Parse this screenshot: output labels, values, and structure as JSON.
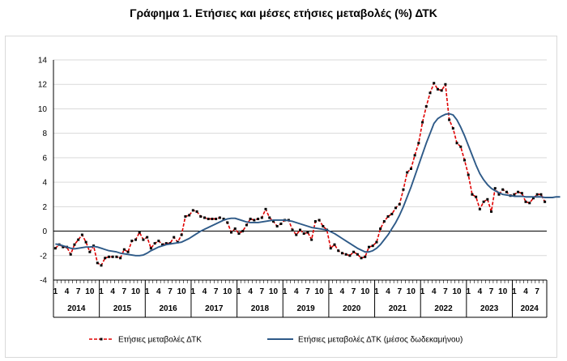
{
  "title": "Γράφημα 1. Ετήσιες και μέσες ετήσιες μεταβολές (%) ΔΤΚ",
  "chart_data": {
    "type": "line",
    "title": "Γράφημα 1. Ετήσιες και μέσες ετήσιες μεταβολές (%) ΔΤΚ",
    "ylim": [
      -4,
      14
    ],
    "yticks": [
      -4,
      -2,
      0,
      2,
      4,
      6,
      8,
      10,
      12,
      14
    ],
    "grid": true,
    "legend_position": "bottom",
    "month_ticks": [
      "1",
      "4",
      "7",
      "10"
    ],
    "years": [
      "2014",
      "2015",
      "2016",
      "2017",
      "2018",
      "2019",
      "2020",
      "2021",
      "2022",
      "2023",
      "2024"
    ],
    "x_start": "2014-01",
    "x_end": "2024-10",
    "series": [
      {
        "name": "Ετήσιες μεταβολές ΔΤΚ",
        "color": "#e00000",
        "style": "dashed",
        "marker": "square",
        "values": [
          -1.4,
          -1.1,
          -1.3,
          -1.3,
          -1.9,
          -1.1,
          -0.7,
          -0.3,
          -0.9,
          -1.7,
          -1.2,
          -2.6,
          -2.8,
          -2.2,
          -2.1,
          -2.1,
          -2.1,
          -2.2,
          -1.5,
          -1.7,
          -0.8,
          -0.7,
          -0.1,
          -0.7,
          -0.5,
          -1.4,
          -1.0,
          -0.8,
          -1.1,
          -1.0,
          -1.0,
          -0.5,
          -0.9,
          -0.3,
          1.2,
          1.3,
          1.7,
          1.6,
          1.2,
          1.1,
          1.0,
          1.0,
          1.0,
          1.1,
          1.0,
          0.7,
          -0.1,
          0.2,
          -0.2,
          0.0,
          0.5,
          1.0,
          0.9,
          1.0,
          1.1,
          1.8,
          1.1,
          0.8,
          0.4,
          0.6,
          0.9,
          0.9,
          0.1,
          -0.3,
          0.1,
          -0.2,
          -0.1,
          -0.7,
          0.8,
          0.9,
          0.4,
          0.1,
          -1.4,
          -1.1,
          -1.6,
          -1.8,
          -1.9,
          -2.0,
          -1.7,
          -1.9,
          -2.2,
          -2.1,
          -1.3,
          -1.2,
          -0.9,
          0.2,
          0.8,
          1.2,
          1.4,
          1.9,
          2.2,
          3.4,
          4.8,
          5.1,
          6.2,
          7.2,
          8.9,
          10.2,
          11.3,
          12.1,
          11.6,
          11.5,
          12.0,
          9.1,
          8.4,
          7.2,
          6.9,
          5.8,
          4.6,
          3.0,
          2.8,
          1.8,
          2.4,
          2.6,
          1.6,
          3.5,
          3.0,
          3.4,
          3.2,
          2.9,
          3.0,
          3.2,
          3.1,
          2.4,
          2.3,
          2.7,
          3.0,
          3.0,
          2.4
        ]
      },
      {
        "name": "Ετήσιες μεταβολές ΔΤΚ (μέσος δωδεκαμήνου)",
        "color": "#2e5a88",
        "style": "solid",
        "values": [
          -1.05,
          -1.1,
          -1.2,
          -1.3,
          -1.4,
          -1.45,
          -1.4,
          -1.35,
          -1.3,
          -1.3,
          -1.25,
          -1.3,
          -1.4,
          -1.5,
          -1.6,
          -1.65,
          -1.7,
          -1.8,
          -1.85,
          -1.9,
          -1.95,
          -2.0,
          -2.0,
          -1.95,
          -1.8,
          -1.6,
          -1.45,
          -1.3,
          -1.2,
          -1.1,
          -1.05,
          -1.0,
          -0.95,
          -0.9,
          -0.75,
          -0.6,
          -0.4,
          -0.2,
          0.0,
          0.15,
          0.3,
          0.45,
          0.6,
          0.75,
          0.9,
          1.0,
          1.05,
          1.05,
          0.95,
          0.85,
          0.75,
          0.7,
          0.7,
          0.7,
          0.75,
          0.8,
          0.85,
          0.9,
          0.9,
          0.9,
          0.9,
          0.85,
          0.8,
          0.7,
          0.6,
          0.5,
          0.4,
          0.3,
          0.25,
          0.2,
          0.15,
          0.1,
          -0.05,
          -0.2,
          -0.4,
          -0.6,
          -0.8,
          -1.0,
          -1.2,
          -1.4,
          -1.55,
          -1.7,
          -1.7,
          -1.6,
          -1.4,
          -1.1,
          -0.7,
          -0.3,
          0.2,
          0.7,
          1.3,
          2.0,
          2.8,
          3.6,
          4.5,
          5.4,
          6.3,
          7.2,
          8.0,
          8.8,
          9.2,
          9.4,
          9.55,
          9.6,
          9.5,
          9.1,
          8.5,
          7.8,
          7.0,
          6.2,
          5.4,
          4.7,
          4.2,
          3.8,
          3.5,
          3.3,
          3.15,
          3.0,
          2.95,
          2.9,
          2.85,
          2.85,
          2.85,
          2.8,
          2.8,
          2.8,
          2.8,
          2.8,
          2.75,
          2.75,
          2.75,
          2.8,
          2.8
        ]
      }
    ]
  }
}
